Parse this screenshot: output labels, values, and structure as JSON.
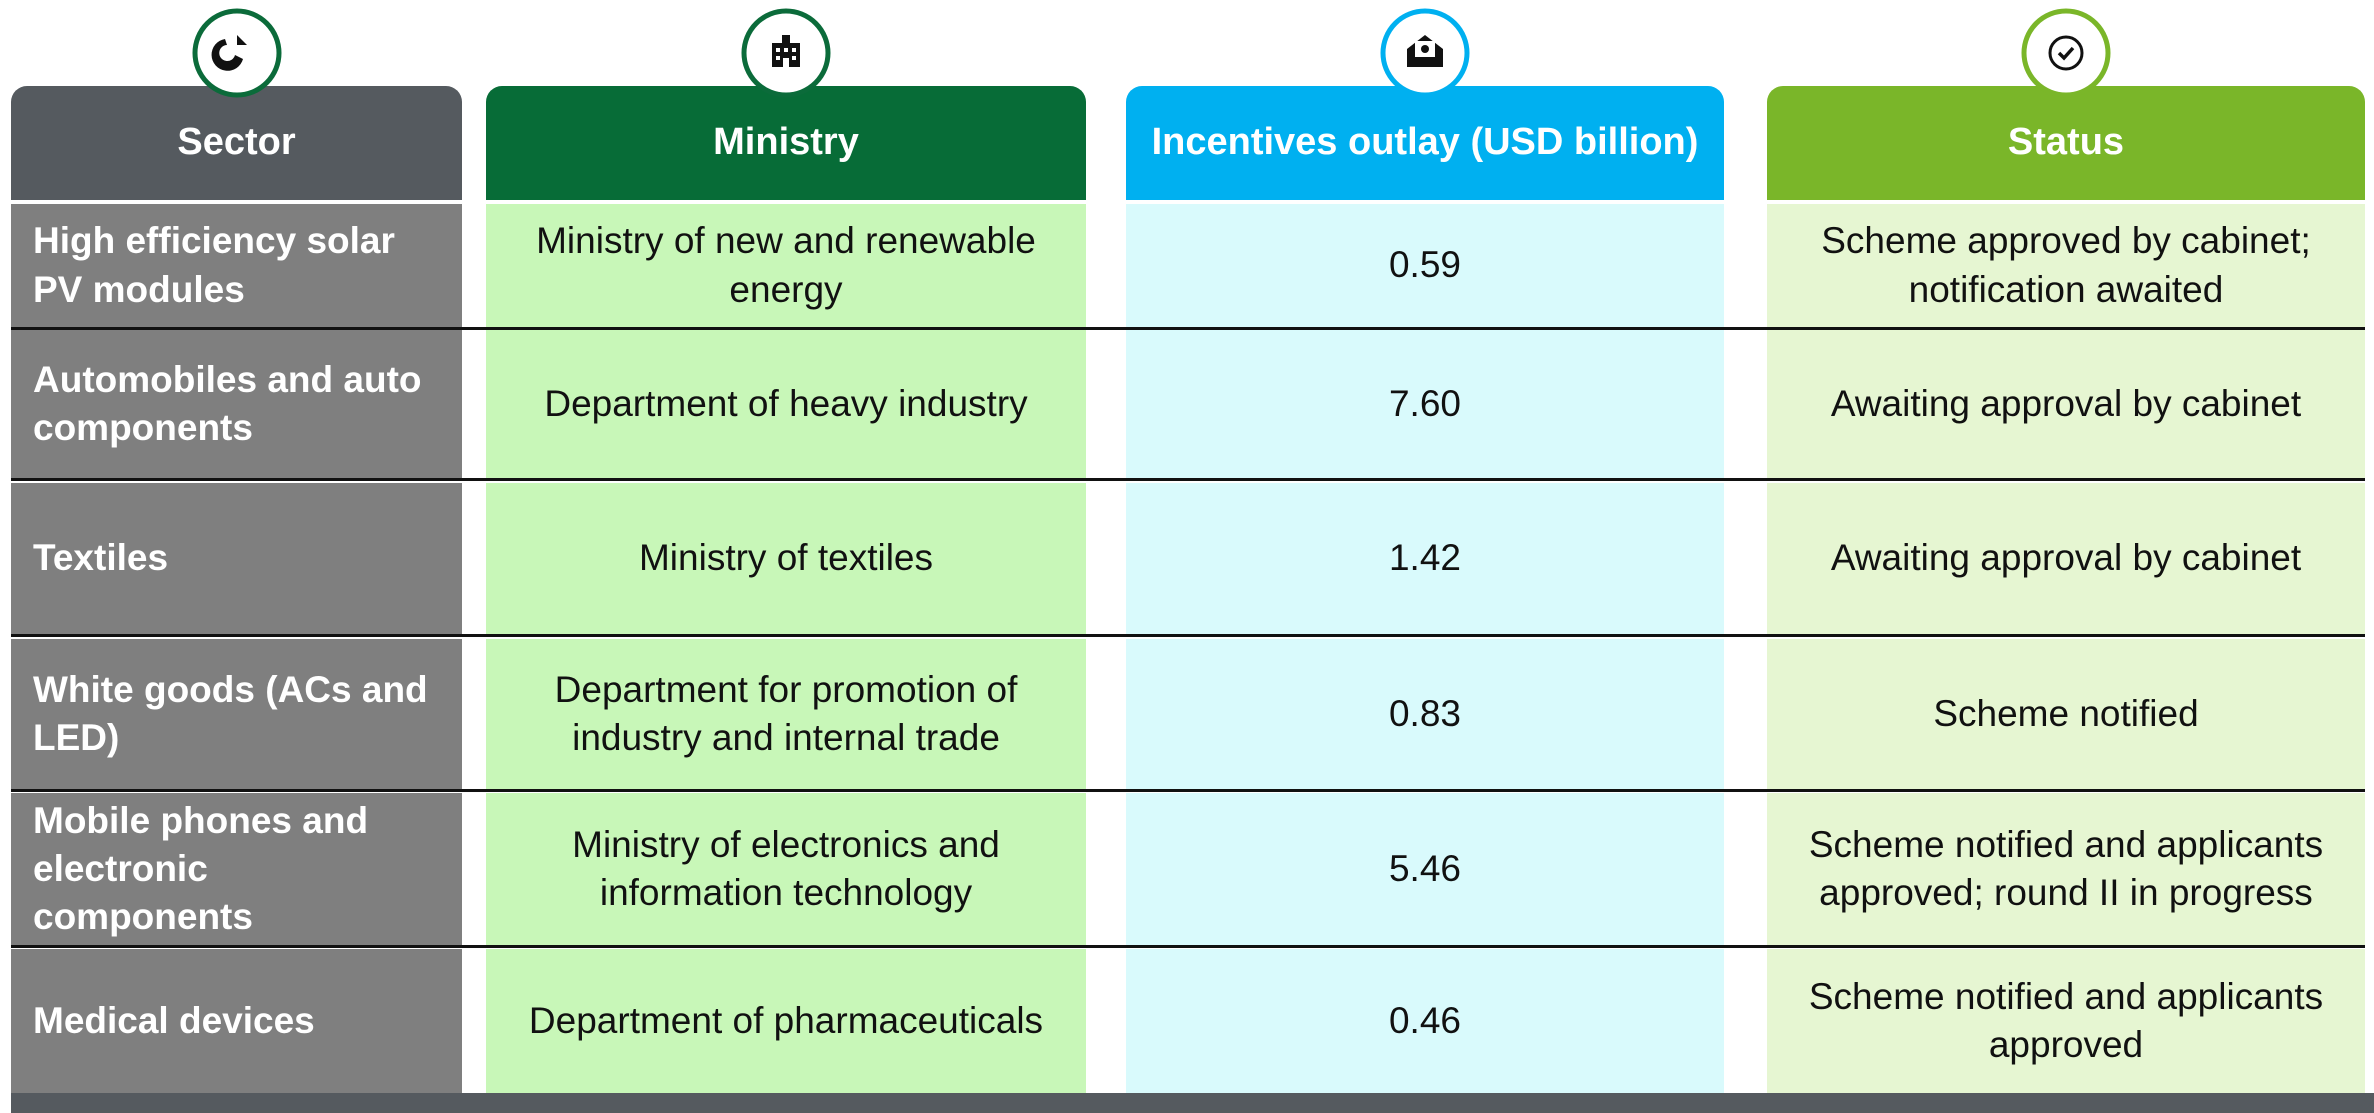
{
  "table": {
    "header": [
      "Sector",
      "Ministry",
      "Incentives outlay (USD billion)",
      "Status"
    ],
    "rows": [
      [
        "High efficiency solar PV modules",
        "Ministry of new and renewable energy",
        "0.59",
        "Scheme approved by cabinet; notification awaited"
      ],
      [
        "Automobiles and auto components",
        "Department of heavy industry",
        "7.60",
        "Awaiting approval by cabinet"
      ],
      [
        "Textiles",
        "Ministry of textiles",
        "1.42",
        "Awaiting approval by cabinet"
      ],
      [
        "White goods (ACs and LED)",
        "Department for promotion of industry and internal trade",
        "0.83",
        "Scheme notified"
      ],
      [
        "Mobile phones and electronic components",
        "Ministry of electronics and information technology",
        "5.46",
        "Scheme notified and applicants approved; round II in progress"
      ],
      [
        "Medical devices",
        "Department of pharmaceuticals",
        "0.46",
        "Scheme notified and applicants approved"
      ]
    ]
  }
}
